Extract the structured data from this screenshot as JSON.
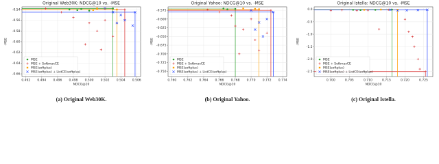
{
  "chart_data": [
    {
      "type": "scatter",
      "title": "Original Web30K: NDCG@10 vs. -MSE",
      "xlabel": "NDCG@10",
      "ylabel": "-MSE",
      "caption": "(a) Original Web30K.",
      "xlim": [
        0.4915,
        0.5065
      ],
      "ylim": [
        -0.665,
        -0.535
      ],
      "xticks": [
        0.492,
        0.494,
        0.496,
        0.498,
        {
          "value": 0.5,
          "label": "0.500"
        },
        0.502,
        0.504,
        0.506
      ],
      "yticks": [
        -0.54,
        -0.56,
        -0.58,
        {
          "value": -0.6,
          "label": "-0.60"
        },
        -0.62,
        -0.64,
        -0.66
      ],
      "grid": true,
      "legend": "lower left",
      "series": [
        {
          "name": "MSE",
          "color": "#2ca02c",
          "marker": "circle",
          "x": [
            0.499,
            0.4985,
            0.5,
            0.4975,
            0.503
          ],
          "values": [
            -0.539,
            -0.541,
            -0.542,
            -0.54,
            -0.538
          ]
        },
        {
          "name": "MSE + SoftmaxCE",
          "color": "#d62728",
          "marker": "plus",
          "x": [
            0.4945,
            0.4965,
            0.498,
            0.5,
            0.501,
            0.502,
            0.503,
            0.4995,
            0.5015,
            0.5045
          ],
          "values": [
            -0.538,
            -0.545,
            -0.555,
            -0.565,
            -0.58,
            -0.56,
            -0.59,
            -0.605,
            -0.615,
            -0.54
          ]
        },
        {
          "name": "MSE(softplus)",
          "color": "#ff9f00",
          "marker": "square",
          "x": [
            0.501,
            0.502,
            0.5035,
            0.5005
          ],
          "values": [
            -0.538,
            -0.539,
            -0.54,
            -0.541
          ]
        },
        {
          "name": "MSE(softplus) + ListCE(softplus)",
          "color": "#1f3fff",
          "marker": "x",
          "x": [
            0.502,
            0.503,
            0.504,
            0.5045,
            0.5055,
            0.5035,
            0.5058
          ],
          "values": [
            -0.538,
            -0.545,
            -0.55,
            -0.56,
            -0.57,
            -0.565,
            -0.545
          ]
        }
      ]
    },
    {
      "type": "scatter",
      "title": "Original Yahoo: NDCG@10 vs. -MSE",
      "xlabel": "NDCG@10",
      "ylabel": "-MSE",
      "caption": "(b) Original Yahoo.",
      "xlim": [
        0.7595,
        0.7745
      ],
      "ylim": [
        -0.765,
        -0.565
      ],
      "xticks": [
        {
          "value": 0.76,
          "label": "0.760"
        },
        0.762,
        0.764,
        0.766,
        0.768,
        {
          "value": 0.77,
          "label": "0.770"
        },
        0.772,
        0.774
      ],
      "yticks": [
        -0.575,
        {
          "value": -0.6,
          "label": "-0.600"
        },
        -0.625,
        {
          "value": -0.65,
          "label": "-0.650"
        },
        -0.675,
        {
          "value": -0.7,
          "label": "-0.700"
        },
        -0.725,
        {
          "value": -0.75,
          "label": "-0.750"
        }
      ],
      "grid": true,
      "legend": "lower left",
      "series": [
        {
          "name": "MSE",
          "color": "#2ca02c",
          "marker": "circle",
          "x": [
            0.7665,
            0.767,
            0.768
          ],
          "values": [
            -0.57,
            -0.572,
            -0.571
          ]
        },
        {
          "name": "MSE + SoftmaxCE",
          "color": "#d62728",
          "marker": "plus",
          "x": [
            0.7645,
            0.766,
            0.7675,
            0.768,
            0.769,
            0.77,
            0.7705,
            0.771,
            0.7685,
            0.7725,
            0.772
          ],
          "values": [
            -0.573,
            -0.58,
            -0.59,
            -0.62,
            -0.63,
            -0.6,
            -0.66,
            -0.69,
            -0.7,
            -0.575,
            -0.64
          ]
        },
        {
          "name": "MSE(softplus)",
          "color": "#ff9f00",
          "marker": "square",
          "x": [
            0.769,
            0.7705,
            0.771
          ],
          "values": [
            -0.57,
            -0.571,
            -0.572
          ]
        },
        {
          "name": "MSE(softplus) + ListCE(softplus)",
          "color": "#1f3fff",
          "marker": "x",
          "x": [
            0.77,
            0.771,
            0.7705,
            0.772,
            0.7715,
            0.7728
          ],
          "values": [
            -0.575,
            -0.61,
            -0.63,
            -0.6,
            -0.65,
            -0.58
          ]
        }
      ]
    },
    {
      "type": "scatter",
      "title": "Original Istella: NDCG@10 vs. -MSE",
      "xlabel": "NDCG@10",
      "ylabel": "-MSE",
      "caption": "(c) Original Istella.",
      "xlim": [
        0.6955,
        0.7275
      ],
      "ylim": [
        -2.7,
        0.1
      ],
      "xticks": [
        {
          "value": 0.7,
          "label": "0.700"
        },
        0.705,
        {
          "value": 0.71,
          "label": "0.710"
        },
        0.715,
        {
          "value": 0.72,
          "label": "0.720"
        },
        0.725
      ],
      "yticks": [
        {
          "value": 0,
          "label": "0.0"
        },
        -0.5,
        {
          "value": -1,
          "label": "-1.0"
        },
        -1.5,
        {
          "value": -2,
          "label": "-2.0"
        },
        -2.5
      ],
      "grid": true,
      "legend": "lower left",
      "series": [
        {
          "name": "MSE",
          "color": "#2ca02c",
          "marker": "circle",
          "x": [
            0.706,
            0.708,
            0.712,
            0.7165
          ],
          "values": [
            -0.02,
            -0.03,
            -0.02,
            -0.01
          ]
        },
        {
          "name": "MSE + SoftmaxCE",
          "color": "#d62728",
          "marker": "plus",
          "x": [
            0.7,
            0.703,
            0.707,
            0.71,
            0.7155,
            0.72,
            0.721,
            0.7225,
            0.7235,
            0.724,
            0.7255,
            0.722,
            0.713
          ],
          "values": [
            -0.05,
            -0.03,
            -0.05,
            -0.04,
            -0.02,
            -0.4,
            -0.9,
            -1.5,
            -2,
            -2.4,
            -2.5,
            -1.1,
            -0.8
          ]
        },
        {
          "name": "MSE(softplus)",
          "color": "#ff9f00",
          "marker": "square",
          "x": [
            0.709,
            0.7135,
            0.718
          ],
          "values": [
            -0.02,
            -0.01,
            -0.015
          ]
        },
        {
          "name": "MSE(softplus) + ListCE(softplus)",
          "color": "#1f3fff",
          "marker": "x",
          "x": [
            0.716,
            0.718,
            0.7205,
            0.7235,
            0.726
          ],
          "values": [
            -0.02,
            -0.05,
            -0.04,
            -0.03,
            -0.02
          ]
        }
      ]
    }
  ]
}
